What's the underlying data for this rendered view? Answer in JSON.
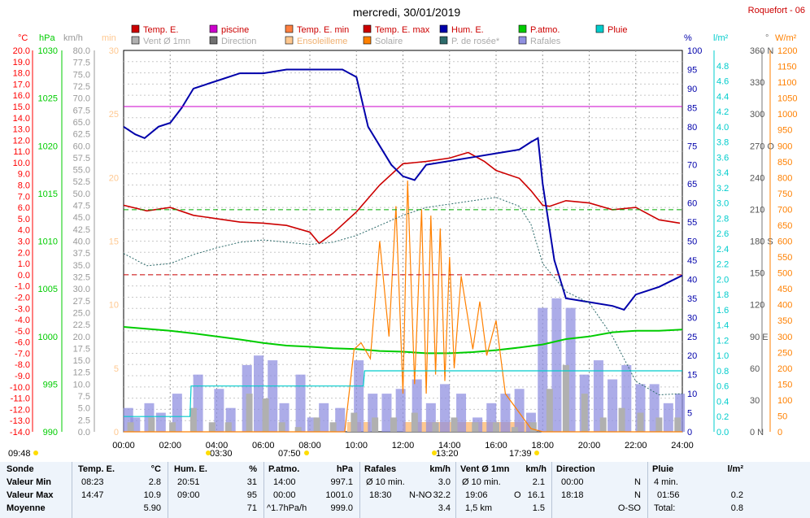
{
  "page": {
    "title": "mercredi, 30/01/2019",
    "location": "Roquefort - 06"
  },
  "legend": [
    {
      "label": "Temp. E.",
      "color": "#cc0000"
    },
    {
      "label": "piscine",
      "color": "#cc00cc"
    },
    {
      "label": "Temp. E. min",
      "color": "#ff8040"
    },
    {
      "label": "Temp. E. max",
      "color": "#cc0000"
    },
    {
      "label": "Hum. E.",
      "color": "#0000aa"
    },
    {
      "label": "P.atmo.",
      "color": "#00cc00"
    },
    {
      "label": "Pluie",
      "color": "#00cccc"
    },
    {
      "label": "Vent Ø 1mn",
      "color": "#b0b0b0"
    },
    {
      "label": "Direction",
      "color": "#707070"
    },
    {
      "label": "Ensoleilleme",
      "color": "#ffc890"
    },
    {
      "label": "Solaire",
      "color": "#ff8000"
    },
    {
      "label": "P. de rosée*",
      "color": "#2d6b6b"
    },
    {
      "label": "Rafales",
      "color": "#9090e0"
    }
  ],
  "axis_units": {
    "temp": "°C",
    "press": "hPa",
    "wind": "km/h",
    "sun": "min",
    "hum": "%",
    "rain": "l/m²",
    "dir": "°",
    "solar": "W/m²"
  },
  "sun_markers": {
    "sunrise_left": "09:48",
    "t1": "03:30",
    "t2": "07:50",
    "t3": "13:20",
    "t4": "17:39"
  },
  "chart_data": {
    "type": "line",
    "title": "mercredi, 30/01/2019",
    "x_ticks": [
      "00:00",
      "02:00",
      "04:00",
      "06:00",
      "08:00",
      "10:00",
      "12:00",
      "14:00",
      "16:00",
      "18:00",
      "20:00",
      "22:00",
      "24:00"
    ],
    "axes": {
      "temp": {
        "unit": "°C",
        "range": [
          -14,
          20
        ],
        "ticks": [
          "20.0",
          "19.0",
          "18.0",
          "17.0",
          "16.0",
          "15.0",
          "14.0",
          "13.0",
          "12.0",
          "11.0",
          "10.0",
          "9.0",
          "8.0",
          "7.0",
          "6.0",
          "5.0",
          "4.0",
          "3.0",
          "2.0",
          "1.0",
          "0.0",
          "-1.0",
          "-2.0",
          "-3.0",
          "-4.0",
          "-5.0",
          "-6.0",
          "-7.0",
          "-8.0",
          "-9.0",
          "-10.0",
          "-11.0",
          "-12.0",
          "-13.0",
          "-14.0"
        ]
      },
      "press": {
        "unit": "hPa",
        "range": [
          990,
          1030
        ],
        "ticks": [
          "1030",
          "1025",
          "1020",
          "1015",
          "1010",
          "1005",
          "1000",
          "995",
          "990"
        ]
      },
      "wind": {
        "unit": "km/h",
        "range": [
          0,
          80
        ],
        "ticks": [
          "80.0",
          "77.5",
          "75.0",
          "72.5",
          "70.0",
          "67.5",
          "65.0",
          "62.5",
          "60.0",
          "57.5",
          "55.0",
          "52.5",
          "50.0",
          "47.5",
          "45.0",
          "42.5",
          "40.0",
          "37.5",
          "35.0",
          "32.5",
          "30.0",
          "27.5",
          "25.0",
          "22.5",
          "20.0",
          "17.5",
          "15.0",
          "12.5",
          "10.0",
          "7.5",
          "5.0",
          "2.5",
          "0.0"
        ]
      },
      "sun": {
        "unit": "min",
        "range": [
          0,
          30
        ],
        "ticks": [
          "30",
          "25",
          "20",
          "15",
          "10",
          "5",
          "0"
        ]
      },
      "hum": {
        "unit": "%",
        "range": [
          0,
          100
        ],
        "ticks": [
          "100",
          "95",
          "90",
          "85",
          "80",
          "75",
          "70",
          "65",
          "60",
          "55",
          "50",
          "45",
          "40",
          "35",
          "30",
          "25",
          "20",
          "15",
          "10",
          "5",
          "0"
        ]
      },
      "rain": {
        "unit": "l/m²",
        "range": [
          0,
          5
        ],
        "ticks": [
          "4.8",
          "4.6",
          "4.4",
          "4.2",
          "4.0",
          "3.8",
          "3.6",
          "3.4",
          "3.2",
          "3.0",
          "2.8",
          "2.6",
          "2.4",
          "2.2",
          "2.0",
          "1.8",
          "1.6",
          "1.4",
          "1.2",
          "1.0",
          "0.8",
          "0.6",
          "0.4",
          "0.2",
          "0.0"
        ]
      },
      "dir": {
        "unit": "°",
        "range": [
          0,
          360
        ],
        "ticks": [
          "360 N",
          "330",
          "300",
          "270 O",
          "240",
          "210",
          "180 S",
          "150",
          "120",
          "90 E",
          "60",
          "30",
          "0 N"
        ]
      },
      "solar": {
        "unit": "W/m²",
        "range": [
          0,
          1200
        ],
        "ticks": [
          "1200",
          "1150",
          "1100",
          "1050",
          "1000",
          "950",
          "900",
          "850",
          "800",
          "750",
          "700",
          "650",
          "600",
          "550",
          "500",
          "450",
          "400",
          "350",
          "300",
          "250",
          "200",
          "150",
          "100",
          "50",
          "0"
        ]
      }
    },
    "series": [
      {
        "name": "Temp. E.",
        "axis": "temp",
        "x": [
          0,
          1,
          2,
          3,
          4,
          5,
          6,
          7,
          8,
          8.4,
          9,
          10,
          11,
          12,
          13,
          14,
          14.8,
          15.5,
          16,
          17,
          17.5,
          18,
          18.3,
          19,
          20,
          21,
          22,
          23,
          23.9
        ],
        "y": [
          6.2,
          5.7,
          6.0,
          5.3,
          5.0,
          4.7,
          4.6,
          4.4,
          3.8,
          2.8,
          3.7,
          5.6,
          8.0,
          9.9,
          10.1,
          10.4,
          10.9,
          10.1,
          9.3,
          8.6,
          7.5,
          6.2,
          6.1,
          6.6,
          6.4,
          5.8,
          6.0,
          4.9,
          4.6
        ]
      },
      {
        "name": "Hum. E.",
        "axis": "hum",
        "x": [
          0,
          0.5,
          0.9,
          1.5,
          2,
          2.5,
          3,
          4,
          5,
          6,
          7,
          8,
          9,
          9.4,
          10,
          10.5,
          11,
          11.5,
          12,
          12.5,
          13,
          14,
          15,
          16,
          17,
          17.5,
          17.8,
          18,
          18.5,
          19,
          20,
          21,
          21.5,
          22,
          23,
          24
        ],
        "y": [
          80,
          78,
          77,
          80,
          81,
          85,
          90,
          92,
          94,
          94,
          95,
          95,
          95,
          95,
          93,
          80,
          75,
          70,
          67,
          66,
          70,
          71,
          72,
          73,
          74,
          76,
          77,
          65,
          45,
          35,
          34,
          33,
          32,
          36,
          38,
          41
        ]
      },
      {
        "name": "P.atmo.",
        "axis": "hum",
        "x": [
          0,
          1,
          2,
          3,
          4,
          5,
          6,
          7,
          8,
          9,
          10,
          11,
          12,
          13,
          14,
          15,
          16,
          17,
          18,
          19,
          20,
          21,
          22,
          23,
          24
        ],
        "y": [
          27.5,
          27,
          26.5,
          25.8,
          25,
          24.2,
          23.3,
          22.6,
          22.3,
          21.9,
          21.7,
          21.2,
          21,
          20.6,
          20.6,
          20.9,
          21.4,
          22.1,
          22.9,
          24.3,
          25,
          26.1,
          26.5,
          26.5,
          26.8
        ]
      },
      {
        "name": "Solaire",
        "axis": "solar",
        "x": [
          0,
          9.5,
          9.9,
          10.2,
          10.6,
          11,
          11.4,
          11.7,
          12,
          12.2,
          12.5,
          12.8,
          13,
          13.2,
          13.4,
          13.6,
          13.8,
          14,
          14.2,
          14.5,
          15,
          15.3,
          15.6,
          16,
          16.4,
          17,
          17.5,
          18,
          24
        ],
        "y": [
          0,
          0,
          260,
          280,
          230,
          600,
          300,
          710,
          120,
          790,
          150,
          700,
          120,
          680,
          180,
          640,
          160,
          550,
          200,
          490,
          260,
          410,
          240,
          350,
          120,
          60,
          10,
          0,
          0
        ]
      },
      {
        "name": "P. de rosée*",
        "axis": "temp",
        "x": [
          0,
          1,
          2,
          3,
          4,
          5,
          6,
          7,
          8,
          9,
          10,
          11,
          12,
          13,
          14,
          15,
          16,
          17,
          17.5,
          18,
          19,
          20,
          21,
          22,
          23,
          24
        ],
        "y": [
          1.9,
          0.8,
          1.0,
          1.8,
          2.4,
          2.9,
          3.1,
          2.9,
          2.7,
          2.9,
          3.5,
          4.4,
          5.3,
          6.0,
          6.3,
          6.6,
          6.9,
          6.1,
          4.5,
          1.0,
          -1.5,
          -2.5,
          -5.5,
          -9.5,
          -10.7,
          -10.6
        ]
      },
      {
        "name": "Pluie",
        "axis": "rain",
        "x": [
          0,
          1.75,
          1.8,
          2.85,
          2.9,
          9.4,
          9.5,
          10.3,
          10.35,
          24
        ],
        "y": [
          0.2,
          0.2,
          0.2,
          0.2,
          0.6,
          0.6,
          0.6,
          0.6,
          0.8,
          0.8
        ]
      },
      {
        "name": "Temp. E. max",
        "axis": "temp",
        "x": [
          0,
          24
        ],
        "y": [
          5.8,
          5.8
        ],
        "style": "dashed"
      },
      {
        "name": "piscine",
        "axis": "temp",
        "x": [
          0,
          24
        ],
        "y": [
          15.0,
          15.0
        ]
      },
      {
        "name": "Temp. E. min",
        "axis": "temp",
        "x": [
          0,
          24
        ],
        "y": [
          0.0,
          0.0
        ],
        "style": "dashed"
      }
    ],
    "gusts": {
      "name": "Rafales",
      "axis": "wind",
      "x": [
        0.2,
        0.5,
        1.1,
        1.6,
        2.3,
        3.2,
        4.1,
        4.6,
        5.3,
        5.8,
        6.4,
        6.9,
        7.6,
        8.1,
        8.6,
        9.3,
        10.1,
        10.7,
        11.3,
        11.9,
        12.6,
        13.2,
        13.8,
        14.5,
        15.2,
        15.8,
        16.4,
        17.0,
        17.5,
        18.0,
        18.6,
        19.2,
        19.8,
        20.4,
        21.0,
        21.6,
        22.2,
        22.8,
        23.4,
        23.9
      ],
      "y": [
        5,
        3,
        6,
        4,
        8,
        12,
        9,
        5,
        14,
        16,
        15,
        6,
        12,
        3,
        6,
        5,
        15,
        8,
        8,
        9,
        11,
        6,
        10,
        8,
        3,
        6,
        8,
        9,
        4,
        26,
        28,
        26,
        12,
        15,
        11,
        14,
        10,
        10,
        6,
        8
      ]
    },
    "wind_mean": {
      "name": "Vent Ø 1mn",
      "axis": "wind",
      "x": [
        0.3,
        1.2,
        2.1,
        3.0,
        3.8,
        4.5,
        5.4,
        6.1,
        6.8,
        7.5,
        8.3,
        9.0,
        9.9,
        10.8,
        11.6,
        12.5,
        13.4,
        14.2,
        15.1,
        16.0,
        16.8,
        17.6,
        18.3,
        19.0,
        19.8,
        20.6,
        21.4,
        22.2,
        23.0,
        23.8
      ],
      "y": [
        2,
        3,
        2,
        5,
        2,
        2,
        8,
        7,
        2,
        1,
        3,
        2,
        4,
        3,
        3,
        4,
        2,
        3,
        2,
        2,
        1,
        2,
        9,
        14,
        8,
        3,
        5,
        4,
        3,
        3
      ]
    }
  },
  "summary": {
    "sonde": {
      "title": "Sonde",
      "min": "Valeur Min",
      "max": "Valeur Max",
      "avg": "Moyenne"
    },
    "temp": {
      "title": "Temp. E.",
      "unit": "°C",
      "min_time": "08:23",
      "min_val": "2.8",
      "max_time": "14:47",
      "max_val": "10.9",
      "avg": "5.90"
    },
    "hum": {
      "title": "Hum. E.",
      "unit": "%",
      "min_time": "20:51",
      "min_val": "31",
      "max_time": "09:00",
      "max_val": "95",
      "avg": "71"
    },
    "press": {
      "title": "P.atmo.",
      "unit": "hPa",
      "min_time": "14:00",
      "min_val": "997.1",
      "max_time": "00:00",
      "max_val": "1001.0",
      "avg_label": "^1.7hPa/h",
      "avg": "999.0"
    },
    "gust": {
      "title": "Rafales",
      "unit": "km/h",
      "min_label": "Ø 10 min.",
      "min_val": "3.0",
      "max_time": "18:30",
      "max_dir": "N-NO",
      "max_val": "32.2",
      "avg": "3.4"
    },
    "wind": {
      "title": "Vent Ø 1mn",
      "unit": "km/h",
      "min_label": "Ø 10 min.",
      "min_val": "2.1",
      "max_time": "19:06",
      "max_dir": "O",
      "max_val": "16.1",
      "avg_dist": "1,5 km",
      "avg": "1.5"
    },
    "dir": {
      "title": "Direction",
      "min_time": "00:00",
      "min_val": "N",
      "max_time": "18:18",
      "max_val": "N",
      "avg": "O-SO"
    },
    "rain": {
      "title": "Pluie",
      "unit": "l/m²",
      "min_label": "4 min.",
      "max_time": "01:56",
      "max_val": "0.2",
      "total_label": "Total:",
      "total": "0.8"
    }
  }
}
